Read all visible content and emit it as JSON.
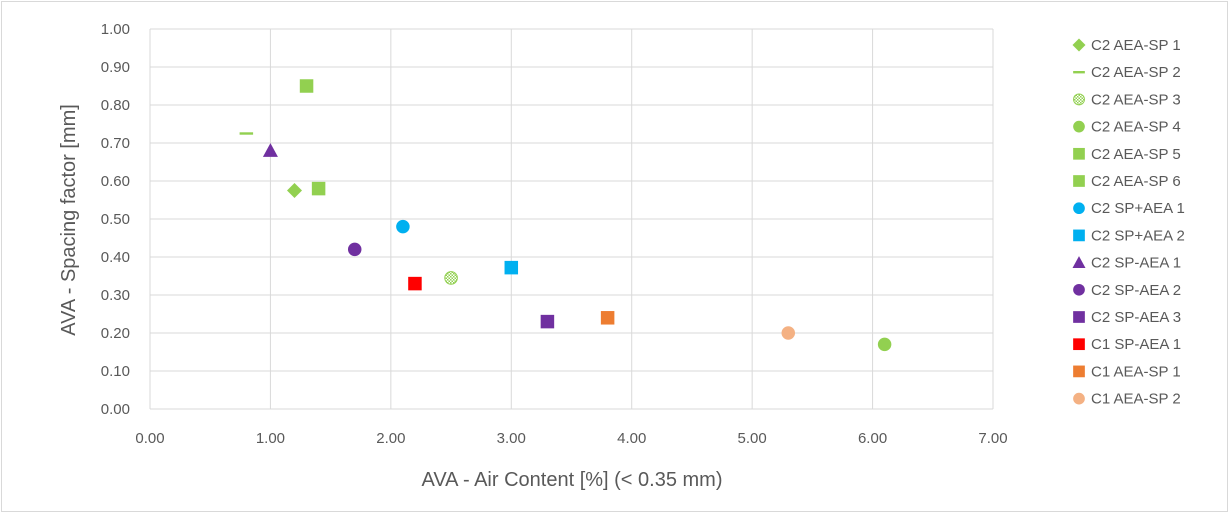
{
  "chart_data": {
    "type": "scatter",
    "title": "",
    "xlabel": "AVA - Air Content [%] (< 0.35 mm)",
    "ylabel": "AVA - Spacing factor [mm]",
    "xlim": [
      0,
      7
    ],
    "ylim": [
      0,
      1
    ],
    "x_ticks": [
      "0.00",
      "1.00",
      "2.00",
      "3.00",
      "4.00",
      "5.00",
      "6.00",
      "7.00"
    ],
    "y_ticks": [
      "0.00",
      "0.10",
      "0.20",
      "0.30",
      "0.40",
      "0.50",
      "0.60",
      "0.70",
      "0.80",
      "0.90",
      "1.00"
    ],
    "grid": true,
    "legend_position": "right",
    "series": [
      {
        "name": "C2 AEA-SP 1",
        "marker": "diamond",
        "color": "#92d050",
        "x": [
          1.2
        ],
        "y": [
          0.575
        ]
      },
      {
        "name": "C2 AEA-SP 2",
        "marker": "dash",
        "color": "#92d050",
        "x": [
          0.8
        ],
        "y": [
          0.725
        ]
      },
      {
        "name": "C2 AEA-SP 3",
        "marker": "hatched-circle",
        "color": "#92d050",
        "x": [
          2.5
        ],
        "y": [
          0.345
        ]
      },
      {
        "name": "C2 AEA-SP 4",
        "marker": "circle",
        "color": "#92d050",
        "x": [
          6.1
        ],
        "y": [
          0.17
        ]
      },
      {
        "name": "C2 AEA-SP 5",
        "marker": "square",
        "color": "#92d050",
        "x": [
          1.3
        ],
        "y": [
          0.85
        ]
      },
      {
        "name": "C2 AEA-SP 6",
        "marker": "square",
        "color": "#92d050",
        "x": [
          1.4
        ],
        "y": [
          0.58
        ]
      },
      {
        "name": "C2 SP+AEA 1",
        "marker": "circle",
        "color": "#00b0f0",
        "x": [
          2.1
        ],
        "y": [
          0.48
        ]
      },
      {
        "name": "C2 SP+AEA 2",
        "marker": "square",
        "color": "#00b0f0",
        "x": [
          3.0
        ],
        "y": [
          0.372
        ]
      },
      {
        "name": "C2 SP-AEA 1",
        "marker": "triangle",
        "color": "#7030a0",
        "x": [
          1.0
        ],
        "y": [
          0.68
        ]
      },
      {
        "name": "C2 SP-AEA 2",
        "marker": "circle",
        "color": "#7030a0",
        "x": [
          1.7
        ],
        "y": [
          0.42
        ]
      },
      {
        "name": "C2 SP-AEA 3",
        "marker": "square",
        "color": "#7030a0",
        "x": [
          3.3
        ],
        "y": [
          0.23
        ]
      },
      {
        "name": "C1 SP-AEA 1",
        "marker": "square",
        "color": "#ff0000",
        "x": [
          2.2
        ],
        "y": [
          0.33
        ]
      },
      {
        "name": "C1 AEA-SP 1",
        "marker": "square",
        "color": "#ed7d31",
        "x": [
          3.8
        ],
        "y": [
          0.24
        ]
      },
      {
        "name": "C1 AEA-SP 2",
        "marker": "circle",
        "color": "#f4b183",
        "x": [
          5.3
        ],
        "y": [
          0.2
        ]
      }
    ]
  }
}
